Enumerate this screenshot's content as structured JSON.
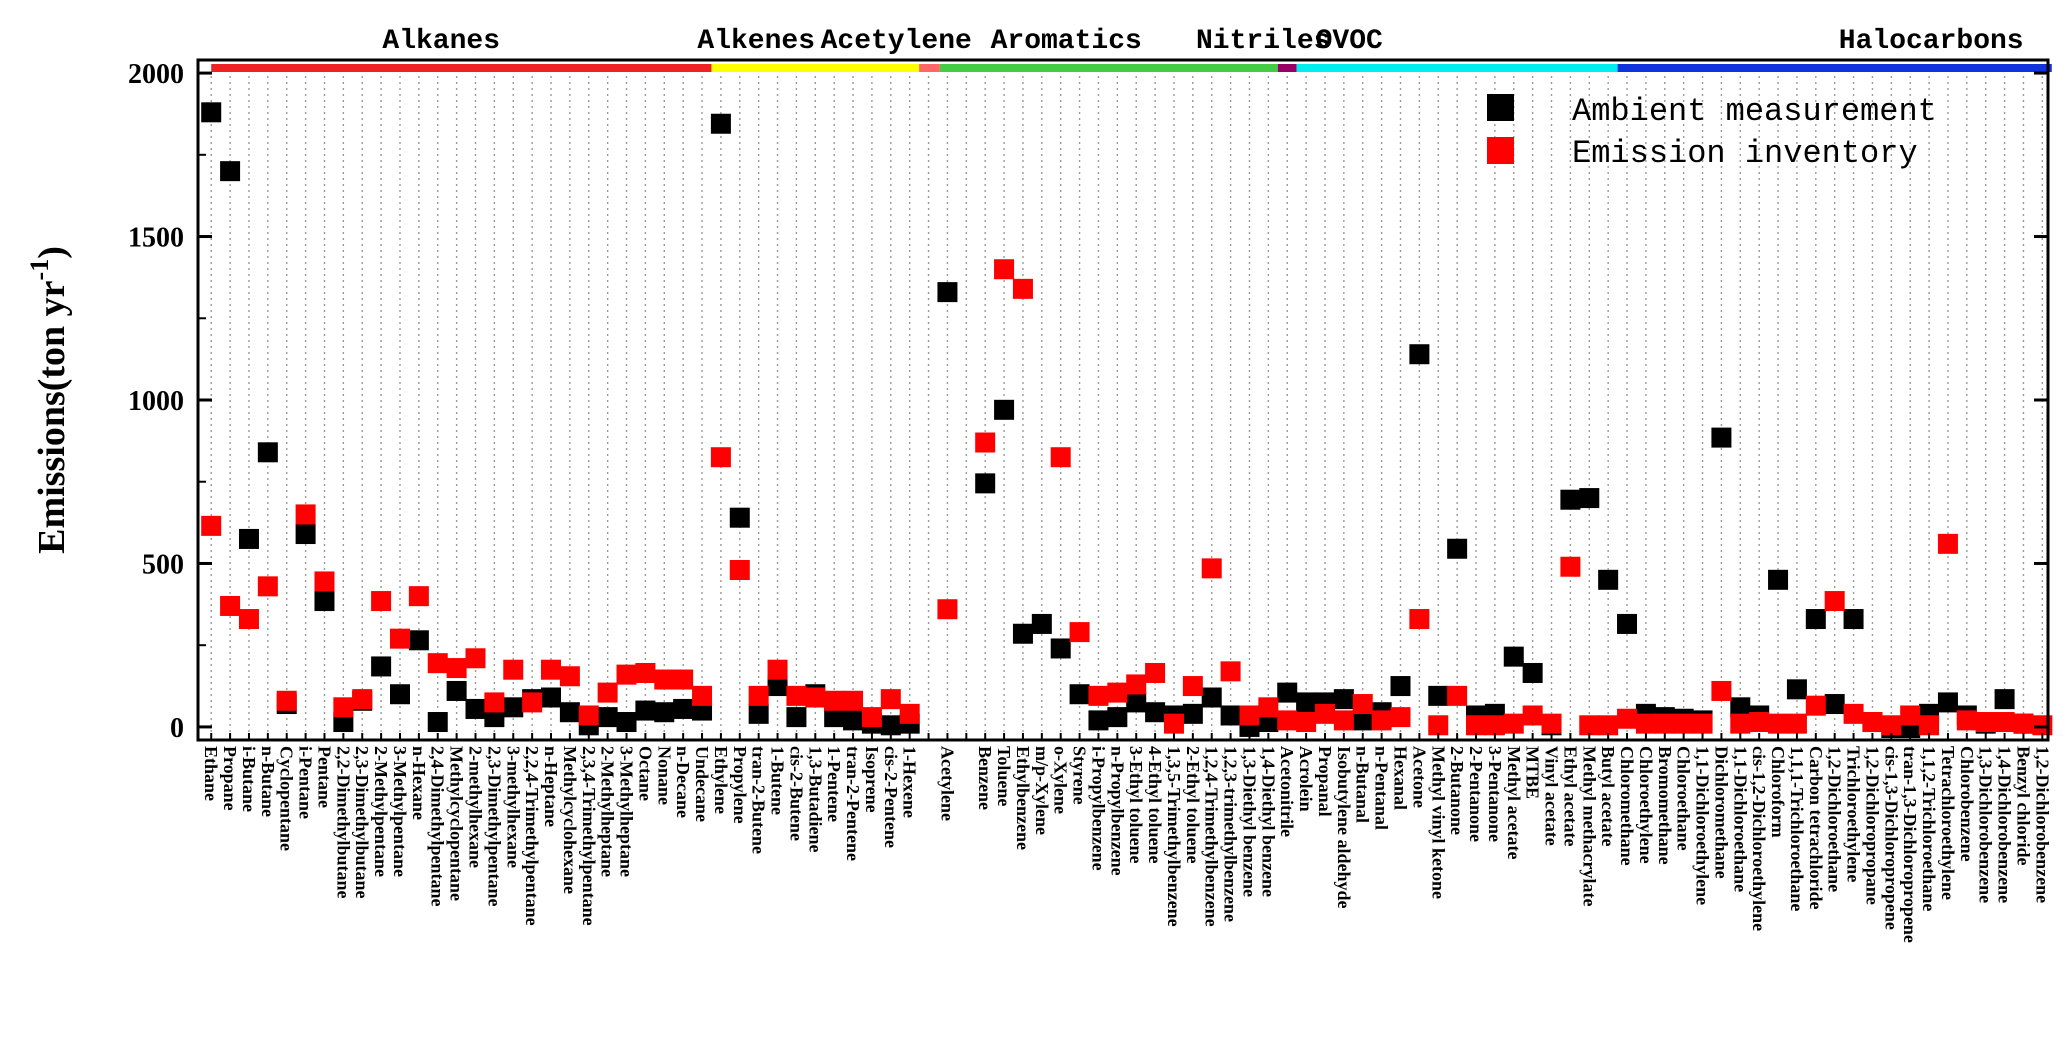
{
  "chart_data": {
    "type": "scatter",
    "ylabel": "Emissions(ton yr",
    "ylabel_superscript": "-1",
    "ylabel_close": ")",
    "ylim": [
      -40,
      2040
    ],
    "yticks": [
      0,
      500,
      1000,
      1500,
      2000
    ],
    "grid": "vertical dotted",
    "legend_position": "top-right",
    "categories": [
      "Ethane",
      "Propane",
      "i-Butane",
      "n-Butane",
      "Cyclopentane",
      "i-Pentane",
      "Pentane",
      "2,2-Dimethylbutane",
      "2,3-Dimethylbutane",
      "2-Methylpentane",
      "3-Methylpentane",
      "n-Hexane",
      "2,4-Dimethylpentane",
      "Methylcyclopentane",
      "2-methylhexane",
      "2,3-Dimethylpentane",
      "3-methylhexane",
      "2,2,4-Trimethylpentane",
      "n-Heptane",
      "Methylcyclohexane",
      "2,3,4-Trimethylpentane",
      "2-Methylheptane",
      "3-Methylheptane",
      "Octane",
      "Nonane",
      "n-Decane",
      "Undecane",
      "Ethylene",
      "Propylene",
      "tran-2-Butene",
      "1-Butene",
      "cis-2-Butene",
      "1,3-Butadiene",
      "1-Pentene",
      "tran-2-Pentene",
      "Isoprene",
      "cis-2-Pentene",
      "1-Hexene",
      "",
      "Acetylene",
      "",
      "Benzene",
      "Toluene",
      "Ethylbenzene",
      "m/p-Xylene",
      "o-Xylene",
      "Styrene",
      "i-Propylbenzene",
      "n-Propylbenzene",
      "3-Ethyl toluene",
      "4-Ethyl toluene",
      "1,3,5-Trimethylbenzene",
      "2-Ethyl toluene",
      "1,2,4-Trimethylbenzene",
      "1,2,3-trimethylbenzene",
      "1,3-Diethyl benzene",
      "1,4-Diethyl benzene",
      "Acetonitrile",
      "Acrolein",
      "Propanal",
      "Isobutylene aldehyde",
      "n-Butanal",
      "n-Pentanal",
      "Hexanal",
      "Acetone",
      "Methyl vinyl ketone",
      "2-Butanone",
      "2-Pentanone",
      "3-Pentanone",
      "Methyl acetate",
      "MTBE",
      "Vinyl acetate",
      "Ethyl acetate",
      "Methyl methacrylate",
      "Butyl acetate",
      "Chloromethane",
      "Chloroethylene",
      "Bromomethane",
      "Chloroethane",
      "1,1-Dichloroethylene",
      "Dichloromethane",
      "1,1-Dichloroethane",
      "cis-1,2-Dichloroethylene",
      "Chloroform",
      "1,1,1-Trichloroethane",
      "Carbon tetrachloride",
      "1,2-Dichloroethane",
      "Trichloroethylene",
      "1,2-Dichloropropane",
      "cis-1,3-Dichloropropene",
      "tran-1,3-Dichloropropene",
      "1,1,2-Trichloroethane",
      "Tetrachloroethylene",
      "Chlorobenzene",
      "1,3-Dichlorobenzene",
      "1,4-Dichlorobenzene",
      "Benzyl chloride",
      "1,2-Dichlorobenzene"
    ],
    "series": [
      {
        "name": "Ambient measurement",
        "color": "#000000",
        "values": [
          1880,
          1700,
          575,
          840,
          70,
          590,
          385,
          15,
          80,
          185,
          100,
          265,
          15,
          110,
          55,
          30,
          60,
          85,
          90,
          45,
          5,
          30,
          15,
          50,
          45,
          55,
          50,
          1845,
          640,
          40,
          125,
          30,
          100,
          30,
          20,
          10,
          5,
          10,
          null,
          1330,
          null,
          745,
          970,
          285,
          315,
          240,
          100,
          20,
          30,
          75,
          45,
          35,
          40,
          90,
          35,
          0,
          15,
          105,
          75,
          75,
          85,
          20,
          45,
          125,
          1140,
          95,
          545,
          35,
          40,
          215,
          165,
          5,
          695,
          700,
          450,
          315,
          40,
          30,
          25,
          20,
          885,
          60,
          35,
          450,
          115,
          330,
          70,
          330,
          15,
          -20,
          -20,
          40,
          75,
          35,
          10,
          85,
          10
        ],
        "markers": "filled squares"
      },
      {
        "name": "Emission inventory",
        "color": "#ff0000",
        "values": [
          615,
          370,
          330,
          430,
          80,
          650,
          445,
          60,
          85,
          385,
          270,
          400,
          195,
          180,
          210,
          75,
          175,
          75,
          175,
          155,
          35,
          105,
          160,
          165,
          145,
          145,
          95,
          825,
          480,
          95,
          175,
          95,
          90,
          80,
          80,
          30,
          85,
          40,
          null,
          360,
          null,
          870,
          1400,
          1340,
          null,
          825,
          290,
          95,
          105,
          130,
          165,
          10,
          125,
          485,
          170,
          35,
          60,
          20,
          15,
          40,
          20,
          70,
          20,
          30,
          330,
          5,
          95,
          5,
          5,
          10,
          35,
          10,
          490,
          5,
          5,
          25,
          10,
          10,
          10,
          10,
          110,
          10,
          15,
          10,
          10,
          65,
          385,
          40,
          15,
          5,
          35,
          5,
          560,
          20,
          15,
          15,
          10,
          5
        ],
        "markers": "filled squares"
      }
    ],
    "groups": [
      {
        "label": "Alkanes",
        "color": "#ee2222"
      },
      {
        "label": "Alkenes",
        "color": "#ffff00"
      },
      {
        "label": "Acetylene",
        "color": "#ff6666"
      },
      {
        "label": "Aromatics",
        "color": "#44cc44"
      },
      {
        "label": "Nitriles",
        "color": "#990066"
      },
      {
        "label": "OVOC",
        "color": "#00eeee"
      },
      {
        "label": "Halocarbons",
        "color": "#1133dd"
      }
    ]
  }
}
